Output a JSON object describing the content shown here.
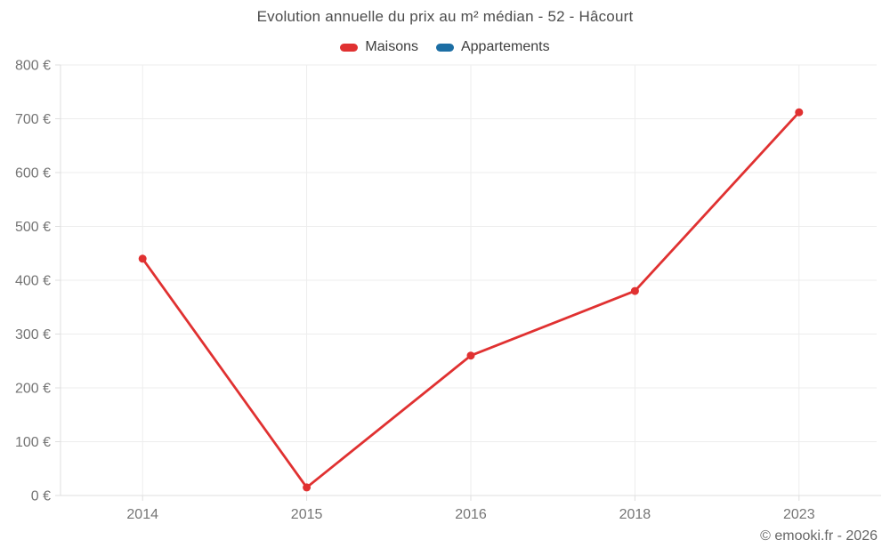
{
  "header": {
    "title": "Evolution annuelle du prix au m² médian - 52 - Hâcourt",
    "legend": [
      {
        "label": "Maisons",
        "color": "#e03131"
      },
      {
        "label": "Appartements",
        "color": "#1c6ea4"
      }
    ]
  },
  "chart_data": {
    "type": "line",
    "title": "Evolution annuelle du prix au m² médian - 52 - Hâcourt",
    "categories": [
      "2014",
      "2015",
      "2016",
      "2018",
      "2023"
    ],
    "series": [
      {
        "name": "Maisons",
        "color": "#e03131",
        "values": [
          440,
          15,
          260,
          380,
          712
        ]
      },
      {
        "name": "Appartements",
        "color": "#1c6ea4",
        "values": []
      }
    ],
    "xlabel": "",
    "ylabel": "",
    "ylim": [
      0,
      800
    ],
    "ytick_step": 100,
    "ytick_suffix": " €",
    "grid": true,
    "legend_position": "top",
    "colors": {
      "grid_line": "#ededed",
      "axis_line": "#dfdfdf",
      "tick_label": "#757575"
    }
  },
  "footer": {
    "credit": "© emooki.fr - 2026"
  }
}
